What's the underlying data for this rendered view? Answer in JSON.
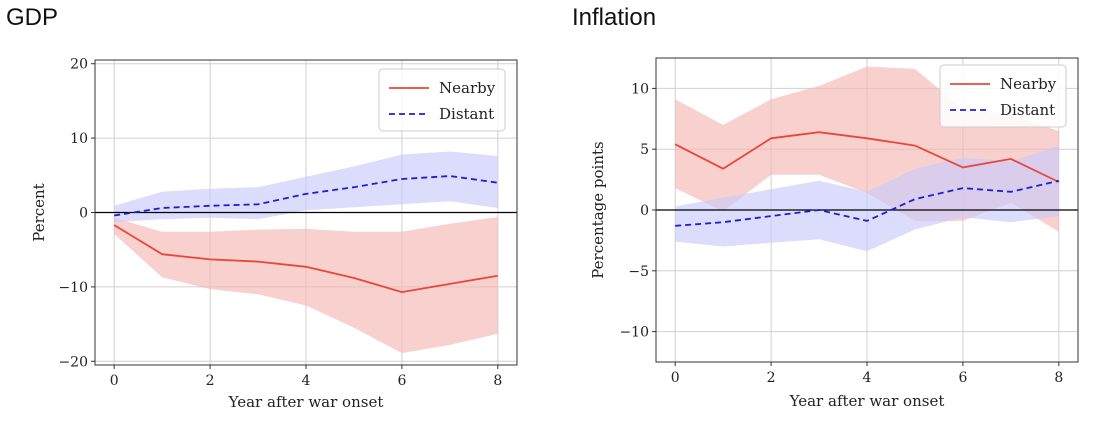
{
  "chart_data": [
    {
      "id": "gdp",
      "type": "line",
      "title": "GDP",
      "xlabel": "Year after war onset",
      "ylabel": "Percent",
      "xlim": [
        -0.4,
        8.4
      ],
      "ylim": [
        -20.5,
        20.5
      ],
      "xticks": [
        0,
        2,
        4,
        6,
        8
      ],
      "yticks": [
        -20,
        -10,
        0,
        10,
        20
      ],
      "ytick_labels": [
        "−20",
        "−10",
        "0",
        "10",
        "20"
      ],
      "grid": true,
      "zero_line": true,
      "legend_position": "top-right",
      "x": [
        0,
        1,
        2,
        3,
        4,
        5,
        6,
        7,
        8
      ],
      "series": [
        {
          "name": "Nearby",
          "style": "solid",
          "color": "#e8473a",
          "band_color": "#f4b7b3",
          "values": [
            -1.7,
            -5.6,
            -6.3,
            -6.6,
            -7.3,
            -8.8,
            -10.7,
            -9.6,
            -8.5
          ],
          "lower": [
            -2.9,
            -8.7,
            -10.3,
            -11.0,
            -12.5,
            -15.5,
            -18.9,
            -17.8,
            -16.3
          ],
          "upper": [
            -0.7,
            -2.6,
            -2.6,
            -2.3,
            -2.2,
            -2.6,
            -2.6,
            -1.5,
            -0.6
          ]
        },
        {
          "name": "Distant",
          "style": "dashed",
          "color": "#1f1fd1",
          "band_color": "#c9c9fb",
          "values": [
            -0.4,
            0.6,
            0.9,
            1.1,
            2.5,
            3.4,
            4.5,
            4.9,
            4.0
          ],
          "lower": [
            -1.3,
            -0.9,
            -0.7,
            -0.9,
            0.3,
            0.7,
            1.1,
            1.5,
            0.6
          ],
          "upper": [
            0.9,
            2.8,
            3.2,
            3.4,
            4.8,
            6.2,
            7.8,
            8.2,
            7.6
          ]
        }
      ]
    },
    {
      "id": "inflation",
      "type": "line",
      "title": "Inflation",
      "xlabel": "Year after war onset",
      "ylabel": "Percentage points",
      "xlim": [
        -0.4,
        8.4
      ],
      "ylim": [
        -12.5,
        12.5
      ],
      "xticks": [
        0,
        2,
        4,
        6,
        8
      ],
      "yticks": [
        -10,
        -5,
        0,
        5,
        10
      ],
      "ytick_labels": [
        "−10",
        "−5",
        "0",
        "5",
        "10"
      ],
      "grid": true,
      "zero_line": true,
      "legend_position": "top-right",
      "x": [
        0,
        1,
        2,
        3,
        4,
        5,
        6,
        7,
        8
      ],
      "series": [
        {
          "name": "Nearby",
          "style": "solid",
          "color": "#e8473a",
          "band_color": "#f4b7b3",
          "values": [
            5.4,
            3.4,
            5.9,
            6.4,
            5.9,
            5.3,
            3.5,
            4.2,
            2.3
          ],
          "lower": [
            1.8,
            -0.1,
            2.9,
            2.9,
            1.4,
            -0.9,
            -0.9,
            0.6,
            -1.8
          ],
          "upper": [
            9.1,
            7.0,
            9.1,
            10.2,
            11.8,
            11.6,
            8.3,
            7.8,
            6.5
          ]
        },
        {
          "name": "Distant",
          "style": "dashed",
          "color": "#1f1fd1",
          "band_color": "#c9c9fb",
          "values": [
            -1.3,
            -1.0,
            -0.5,
            0.0,
            -0.9,
            0.9,
            1.8,
            1.5,
            2.4
          ],
          "lower": [
            -2.6,
            -3.0,
            -2.7,
            -2.4,
            -3.4,
            -1.6,
            -0.6,
            -1.0,
            -0.5
          ],
          "upper": [
            0.3,
            1.0,
            1.7,
            2.4,
            1.5,
            3.4,
            4.3,
            4.0,
            5.3
          ]
        }
      ]
    }
  ]
}
